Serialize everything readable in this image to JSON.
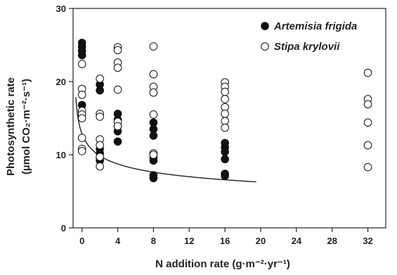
{
  "chart_data": {
    "type": "scatter",
    "xlabel": "N addition rate (g·m⁻²·yr⁻¹)",
    "ylabel_line1": "Photosynthetic rate",
    "ylabel_line2": "(µmol CO₂·m⁻²·s⁻¹)",
    "xlim": [
      -1,
      34
    ],
    "ylim": [
      0,
      30
    ],
    "x_ticks": [
      0,
      4,
      8,
      12,
      16,
      20,
      24,
      28,
      32
    ],
    "y_ticks": [
      0,
      10,
      20,
      30
    ],
    "grid": false,
    "legend_position": "top-right",
    "colors": {
      "filled": "#111111",
      "open_fill": "#ffffff",
      "open_stroke": "#111111"
    },
    "series": [
      {
        "name": "Artemisia frigida",
        "marker": "filled-circle",
        "points": [
          [
            0,
            25.3
          ],
          [
            0,
            24.8
          ],
          [
            0,
            24.2
          ],
          [
            0,
            23.6
          ],
          [
            0,
            16.8
          ],
          [
            2,
            19.6
          ],
          [
            2,
            18.8
          ],
          [
            2,
            10.8
          ],
          [
            2,
            10.2
          ],
          [
            2,
            9.6
          ],
          [
            2,
            9.2
          ],
          [
            4,
            15.6
          ],
          [
            4,
            14.8
          ],
          [
            4,
            13.9
          ],
          [
            4,
            13.2
          ],
          [
            4,
            11.8
          ],
          [
            8,
            14.4
          ],
          [
            8,
            13.5
          ],
          [
            8,
            12.6
          ],
          [
            8,
            9.6
          ],
          [
            8,
            9.2
          ],
          [
            8,
            7.2
          ],
          [
            8,
            6.8
          ],
          [
            16,
            11.6
          ],
          [
            16,
            11.0
          ],
          [
            16,
            10.4
          ],
          [
            16,
            9.4
          ],
          [
            16,
            7.4
          ],
          [
            16,
            7.1
          ]
        ]
      },
      {
        "name": "Stipa krylovii",
        "marker": "open-circle",
        "points": [
          [
            0,
            22.4
          ],
          [
            0,
            19.0
          ],
          [
            0,
            18.2
          ],
          [
            0,
            16.0
          ],
          [
            0,
            15.5
          ],
          [
            0,
            15.0
          ],
          [
            0,
            12.3
          ],
          [
            0,
            10.8
          ],
          [
            0,
            10.5
          ],
          [
            2,
            20.4
          ],
          [
            2,
            15.6
          ],
          [
            2,
            15.2
          ],
          [
            2,
            12.1
          ],
          [
            2,
            11.3
          ],
          [
            2,
            9.7
          ],
          [
            2,
            8.4
          ],
          [
            4,
            24.7
          ],
          [
            4,
            24.3
          ],
          [
            4,
            22.6
          ],
          [
            4,
            21.9
          ],
          [
            4,
            18.9
          ],
          [
            4,
            14.5
          ],
          [
            4,
            13.9
          ],
          [
            8,
            24.8
          ],
          [
            8,
            21.0
          ],
          [
            8,
            19.3
          ],
          [
            8,
            18.5
          ],
          [
            8,
            15.5
          ],
          [
            8,
            10.2
          ],
          [
            8,
            10.0
          ],
          [
            16,
            19.9
          ],
          [
            16,
            19.3
          ],
          [
            16,
            18.6
          ],
          [
            16,
            17.6
          ],
          [
            16,
            16.5
          ],
          [
            16,
            15.6
          ],
          [
            16,
            14.6
          ],
          [
            16,
            13.7
          ],
          [
            32,
            21.2
          ],
          [
            32,
            17.6
          ],
          [
            32,
            16.9
          ],
          [
            32,
            14.4
          ],
          [
            32,
            11.3
          ],
          [
            32,
            8.3
          ]
        ]
      }
    ],
    "fit_curve": {
      "x_range": [
        -0.7,
        19.5
      ],
      "a": 12.6,
      "b": 2.3,
      "c": 0.92
    }
  }
}
